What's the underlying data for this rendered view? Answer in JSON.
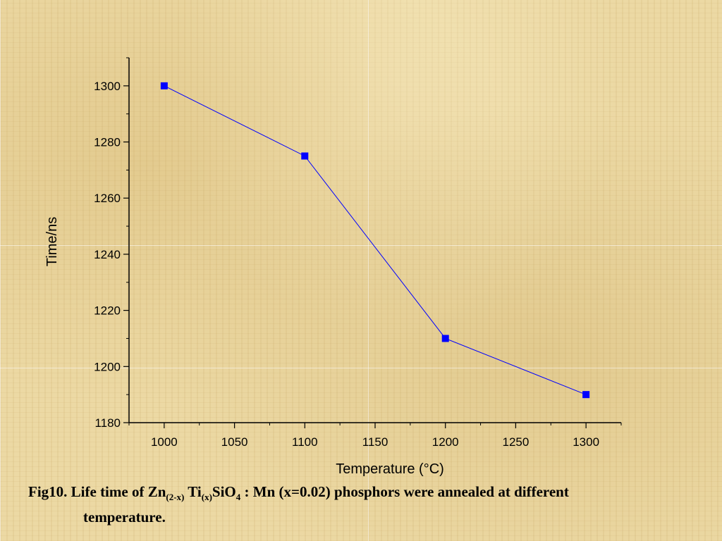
{
  "slide": {
    "caption": {
      "prefix": "Fig10. Life time of Zn",
      "sub1": "(2-x)",
      "mid1": " Ti",
      "sub2": "(x)",
      "mid2": "SiO",
      "sub3": "4",
      "rest": " : Mn (x=0.02) phosphors were annealed at different",
      "line2": "temperature."
    }
  },
  "chart_data": {
    "type": "line",
    "xlabel": "Temperature (°C)",
    "ylabel": "Time/ns",
    "xlim": [
      975,
      1325
    ],
    "ylim": [
      1180,
      1310
    ],
    "x_ticks": [
      1000,
      1050,
      1100,
      1150,
      1200,
      1250,
      1300
    ],
    "y_ticks": [
      1180,
      1200,
      1220,
      1240,
      1260,
      1280,
      1300
    ],
    "series": [
      {
        "x": [
          1000,
          1100,
          1200,
          1300
        ],
        "y": [
          1300,
          1275,
          1210,
          1190
        ],
        "color": "#0000ff",
        "marker": "square"
      }
    ],
    "grid": false
  }
}
